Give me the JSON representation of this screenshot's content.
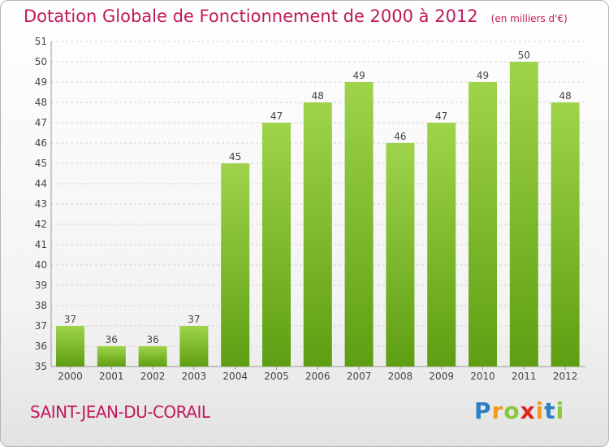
{
  "chart_data": {
    "type": "bar",
    "title": "Dotation Globale de Fonctionnement de 2000 à 2012",
    "subtitle": "(en milliers d'€)",
    "categories": [
      "2000",
      "2001",
      "2002",
      "2003",
      "2004",
      "2005",
      "2006",
      "2007",
      "2008",
      "2009",
      "2010",
      "2011",
      "2012"
    ],
    "values": [
      37,
      36,
      36,
      37,
      45,
      47,
      48,
      49,
      46,
      47,
      49,
      50,
      48
    ],
    "ylim": [
      35,
      51
    ],
    "yticks": [
      35,
      36,
      37,
      38,
      39,
      40,
      41,
      42,
      43,
      44,
      45,
      46,
      47,
      48,
      49,
      50,
      51
    ],
    "grid": true,
    "bar_color": "#7fbf2a"
  },
  "place_name": "SAINT-JEAN-DU-CORAIL",
  "logo": {
    "p": "P",
    "r": "r",
    "o": "o",
    "x": "x",
    "i": "i",
    "t": "t",
    "i2": "i"
  }
}
